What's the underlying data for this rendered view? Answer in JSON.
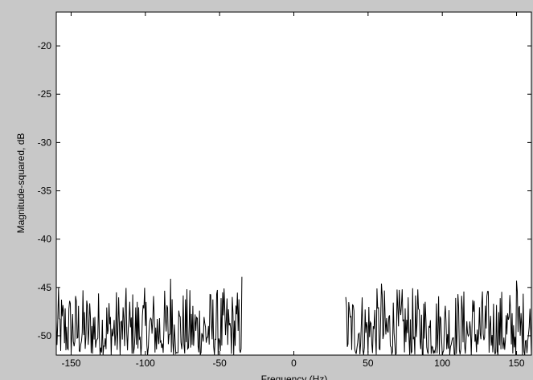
{
  "figure": {
    "background_color": "#c8c8c8",
    "axes_background_color": "#ffffff",
    "line_color": "#000000"
  },
  "chart_data": {
    "type": "line",
    "title": "",
    "xlabel": "Frequency (Hz)",
    "ylabel": "Magnitude-squared, dB",
    "xlim": [
      -160,
      160
    ],
    "ylim": [
      -52,
      -16.5
    ],
    "xticks": [
      -150,
      -100,
      -50,
      0,
      50,
      100,
      150
    ],
    "xtick_labels": [
      "-150",
      "-100",
      "-50",
      "0",
      "50",
      "100",
      "150"
    ],
    "yticks": [
      -50,
      -45,
      -40,
      -35,
      -30,
      -25,
      -20
    ],
    "ytick_labels": [
      "-50",
      "-45",
      "-40",
      "-35",
      "-30",
      "-25",
      "-20"
    ],
    "grid": false,
    "series": [
      {
        "x_start": -160,
        "x_end": 160,
        "x_step": 0.5,
        "passband": [
          -35,
          35
        ],
        "noise_floor_db_range": [
          -52,
          -44
        ],
        "notable_peaks": [
          {
            "x": -83,
            "y": -44.1
          },
          {
            "x": -35,
            "y": -43.9
          },
          {
            "x": 59,
            "y": -44.6
          },
          {
            "x": 150,
            "y": -44.3
          }
        ]
      }
    ]
  }
}
